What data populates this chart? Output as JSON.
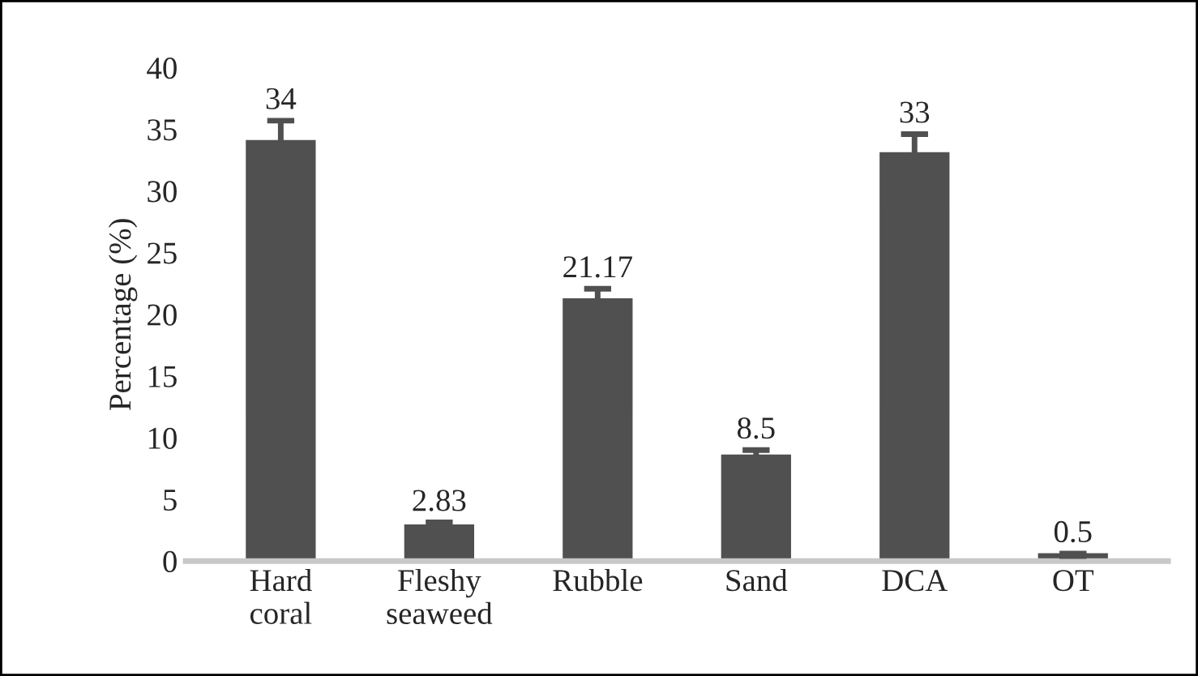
{
  "chart_data": {
    "type": "bar",
    "ylabel": "Percentage (%)",
    "categories": [
      "Hard\ncoral",
      "Fleshy\nseaweed",
      "Rubble",
      "Sand",
      "DCA",
      "OT"
    ],
    "values": [
      34,
      2.83,
      21.17,
      8.5,
      33,
      0.5
    ],
    "errors": [
      1.7,
      0.3,
      0.9,
      0.5,
      1.6,
      0.1
    ],
    "color": "#505050",
    "ylim": [
      0,
      40
    ],
    "yticks": [
      0,
      5,
      10,
      15,
      20,
      25,
      30,
      35,
      40
    ],
    "grid": false,
    "data_labels": true
  }
}
